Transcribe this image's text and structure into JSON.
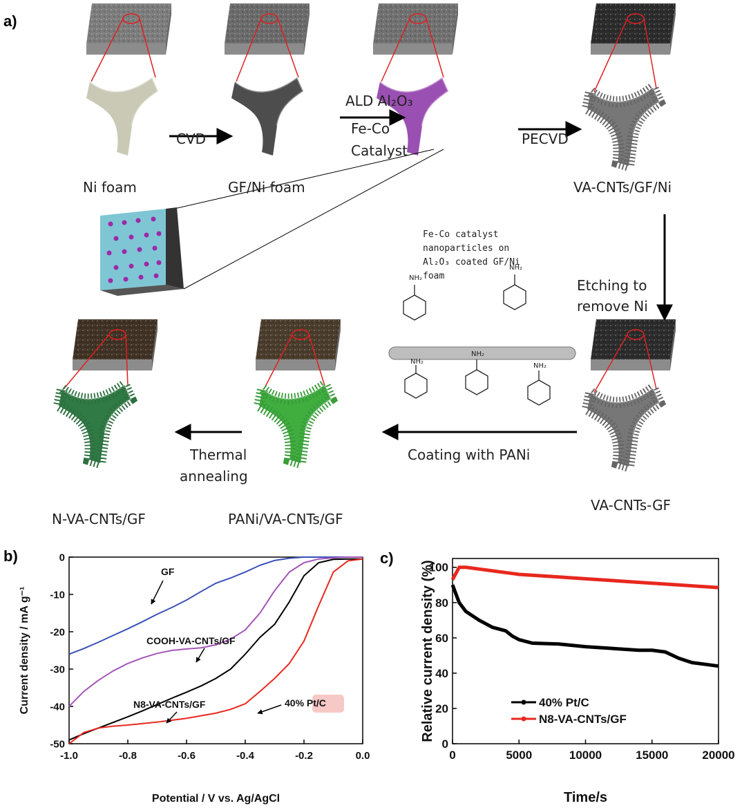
{
  "diagram": {
    "label": "a)",
    "node_labels": [
      "Ni foam",
      "GF/Ni foam",
      "VA-CNTs/GF/Ni",
      "VA-CNTs-GF",
      "PANi/VA-CNTs/GF",
      "N-VA-CNTs/GF"
    ],
    "step_labels": [
      [
        "CVD"
      ],
      [
        "ALD Al₂O₃",
        "Fe-Co",
        "Catalyst"
      ],
      [
        "PECVD"
      ],
      [
        "Etching to",
        "remove Ni"
      ],
      [
        "Coating with PANi"
      ],
      [
        "Thermal",
        "annealing"
      ]
    ],
    "inset_caption": [
      "Fe-Co catalyst",
      "nanoparticles on",
      "Al₂O₃ coated GF/Ni",
      "foam"
    ],
    "molecule_labels": [
      "NH₂",
      "NH₂",
      "NH₂",
      "NH₂",
      "NH₂"
    ]
  },
  "chart_data": [
    {
      "type": "line",
      "panel_label": "b)",
      "x": [
        -1,
        -0.95,
        -0.9,
        -0.85,
        -0.8,
        -0.75,
        -0.7,
        -0.65,
        -0.6,
        -0.55,
        -0.5,
        -0.45,
        -0.4,
        -0.35,
        -0.3,
        -0.25,
        -0.2,
        -0.15,
        -0.1,
        -0.05,
        0
      ],
      "xlim": [
        -1,
        0
      ],
      "xticks": [
        {
          "value": -1,
          "label": "-1.0"
        },
        -0.8,
        -0.6,
        -0.4,
        -0.2,
        {
          "value": 0,
          "label": "0.0"
        }
      ],
      "ylim": [
        -50,
        0
      ],
      "yticks": [
        0,
        -10,
        -20,
        -30,
        -40,
        -50
      ],
      "xlabel": "Potential / V vs. Ag/AgCl",
      "ylabel": "Current density / mA g⁻¹",
      "series": [
        {
          "name": "GF",
          "color": "#3a50b8",
          "values": [
            -26,
            -24.5,
            -22.8,
            -21,
            -19.2,
            -17.3,
            -15.3,
            -13.5,
            -11.5,
            -9.2,
            -7,
            -5.6,
            -4,
            -2.2,
            -0.9,
            -0.3,
            0,
            0,
            0,
            0,
            0
          ]
        },
        {
          "name": "COOH-VA-CNTs/GF",
          "color": "#a455b8",
          "values": [
            -40,
            -36,
            -33,
            -30.5,
            -28.5,
            -27,
            -25.8,
            -25,
            -24.6,
            -24.3,
            -23.5,
            -22,
            -19.5,
            -15,
            -9,
            -4,
            -1.5,
            -0.5,
            -0.2,
            0,
            0
          ]
        },
        {
          "name": "N8-VA-CNTs/GF",
          "color": "#000000",
          "values": [
            -49,
            -47.3,
            -45.8,
            -44.3,
            -42.8,
            -41.2,
            -39.5,
            -37.8,
            -36.2,
            -34.5,
            -32.5,
            -30,
            -26,
            -21.5,
            -18,
            -12,
            -5,
            -1.5,
            -0.6,
            -0.5,
            -0.5
          ]
        },
        {
          "name": "40% Pt/C",
          "color": "#e8281e",
          "values": [
            -50,
            -47,
            -45.8,
            -45.3,
            -45,
            -44.6,
            -44.2,
            -43.7,
            -43.2,
            -42.5,
            -41.8,
            -40.8,
            -39.3,
            -36,
            -32.5,
            -28.5,
            -22.5,
            -13,
            -4,
            -1,
            -0.5
          ]
        }
      ]
    },
    {
      "type": "line",
      "panel_label": "c)",
      "x": [
        0,
        500,
        1000,
        2000,
        3000,
        4000,
        4500,
        5000,
        6000,
        8000,
        10000,
        12000,
        14000,
        15000,
        16000,
        17000,
        18000,
        20000
      ],
      "xlim": [
        0,
        20000
      ],
      "xticks": [
        0,
        5000,
        10000,
        15000,
        20000
      ],
      "ylim": [
        0,
        105
      ],
      "yticks": [
        0,
        20,
        40,
        60,
        80,
        100
      ],
      "xlabel": "Time/s",
      "ylabel": "Relative current density (%)",
      "legend": "lower center",
      "series": [
        {
          "name": "40% Pt/C",
          "color": "#000000",
          "values": [
            90,
            80,
            75,
            70,
            66,
            64,
            61,
            59,
            57,
            56.5,
            55,
            54,
            53,
            53,
            52,
            48.5,
            46,
            44
          ]
        },
        {
          "name": "N8-VA-CNTs/GF",
          "color": "#e8281e",
          "values": [
            93,
            100,
            100,
            99,
            98,
            97,
            96.5,
            96,
            95.5,
            94.5,
            93.5,
            92.5,
            91.5,
            91,
            90.5,
            90,
            89.5,
            88.5
          ]
        }
      ]
    }
  ]
}
